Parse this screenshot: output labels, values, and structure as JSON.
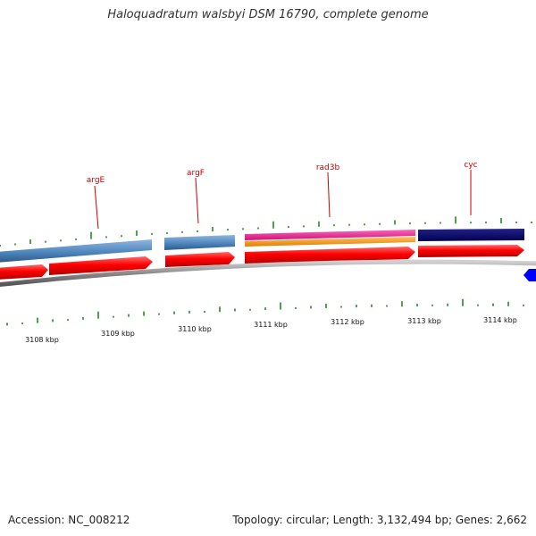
{
  "title": "Haloquadratum walsbyi DSM 16790, complete genome",
  "footer": {
    "accession": "Accession: NC_008212",
    "topology": "Topology: circular; Length: 3,132,494 bp; Genes: 2,662"
  },
  "genes": [
    {
      "name": "argE"
    },
    {
      "name": "argF"
    },
    {
      "name": "rad3b"
    },
    {
      "name": "cyc"
    }
  ],
  "scale_labels": [
    "3108 kbp",
    "3109 kbp",
    "3110 kbp",
    "3111 kbp",
    "3112 kbp",
    "3113 kbp",
    "3114 kbp"
  ],
  "colors": {
    "title": "#333333",
    "gene_label": "#cc0000",
    "cds_forward": "#ff0000",
    "gene_blue": "#4f86bd",
    "rad3_magenta": "#ee2288",
    "rad3_orange": "#ff9900",
    "cyc_navy": "#000066",
    "backbone": "#888888",
    "ticks": "#228B22",
    "reverse_feature": "#0000ff"
  }
}
